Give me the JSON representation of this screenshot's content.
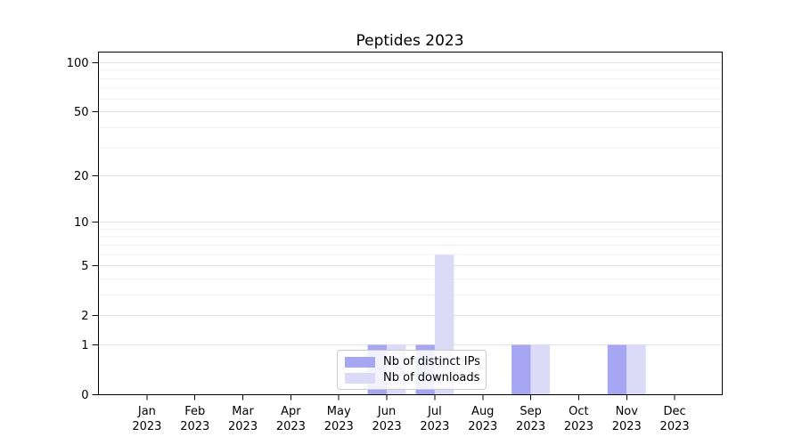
{
  "title": "Peptides 2023",
  "colors": {
    "grid_major": "#e2e2e2",
    "grid_minor": "#f2f2f2",
    "axis": "#000000",
    "text": "#000000",
    "legend_border": "#cbcbcb",
    "series_ips": "#a6a6f2",
    "series_downloads": "#dbdbf7"
  },
  "legend": {
    "position": "lower center",
    "items": [
      {
        "label": "Nb of distinct IPs",
        "color": "#a6a6f2"
      },
      {
        "label": "Nb of downloads",
        "color": "#dbdbf7"
      }
    ]
  },
  "chart_data": {
    "type": "bar",
    "title": "Peptides 2023",
    "xlabel": "",
    "ylabel": "",
    "yscale": "log1p",
    "grid": true,
    "ylim": [
      0,
      116
    ],
    "yticks": [
      0,
      1,
      2,
      5,
      10,
      20,
      50,
      100
    ],
    "minor_gridlines": [
      3,
      4,
      6,
      7,
      8,
      9,
      30,
      40,
      60,
      70,
      80,
      90
    ],
    "categories": [
      [
        "Jan",
        "2023"
      ],
      [
        "Feb",
        "2023"
      ],
      [
        "Mar",
        "2023"
      ],
      [
        "Apr",
        "2023"
      ],
      [
        "May",
        "2023"
      ],
      [
        "Jun",
        "2023"
      ],
      [
        "Jul",
        "2023"
      ],
      [
        "Aug",
        "2023"
      ],
      [
        "Sep",
        "2023"
      ],
      [
        "Oct",
        "2023"
      ],
      [
        "Nov",
        "2023"
      ],
      [
        "Dec",
        "2023"
      ]
    ],
    "series": [
      {
        "name": "Nb of distinct IPs",
        "color": "#a6a6f2",
        "values": [
          0,
          0,
          0,
          0,
          0,
          1,
          1,
          0,
          1,
          0,
          1,
          0
        ]
      },
      {
        "name": "Nb of downloads",
        "color": "#dbdbf7",
        "values": [
          0,
          0,
          0,
          0,
          0,
          1,
          6,
          0,
          1,
          0,
          1,
          0
        ]
      }
    ]
  }
}
